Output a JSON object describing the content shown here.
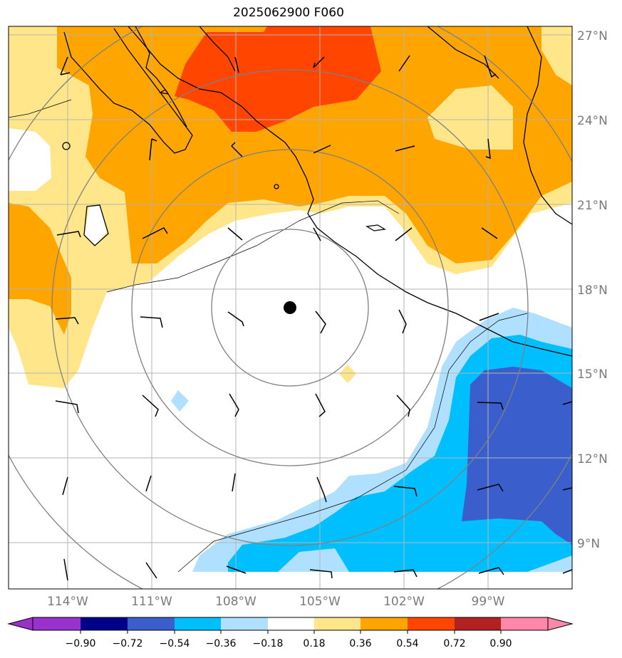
{
  "title": "2025062900 F060",
  "colors": {
    "orange_red": "#ff4500",
    "orange": "#ffa500",
    "light_yellow": "#ffe68a",
    "light_blue": "#b0e0ff",
    "deep_sky_blue": "#00bfff",
    "royal_blue": "#3a5fcd",
    "coastline": "#000000",
    "range_rings": "#808080",
    "grid": "#b4b4b4"
  },
  "map": {
    "lon_labels": [
      "114°W",
      "111°W",
      "108°W",
      "105°W",
      "102°W",
      "99°W"
    ],
    "lat_labels": [
      "27°N",
      "24°N",
      "21°N",
      "18°N",
      "15°N",
      "12°N",
      "9°N"
    ],
    "center_marker": "storm-center-dot",
    "range_rings_count": 4
  },
  "colorbar": {
    "labels": [
      "−0.90",
      "−0.72",
      "−0.54",
      "−0.36",
      "−0.18",
      "0.18",
      "0.36",
      "0.54",
      "0.72",
      "0.90"
    ],
    "colors": [
      "#9932cc",
      "#00008b",
      "#3a5fcd",
      "#00bfff",
      "#b0e0ff",
      "#ffffff",
      "#ffe68a",
      "#ffa500",
      "#ff4500",
      "#b22222",
      "#ff88aa",
      "#ff88aa"
    ]
  }
}
